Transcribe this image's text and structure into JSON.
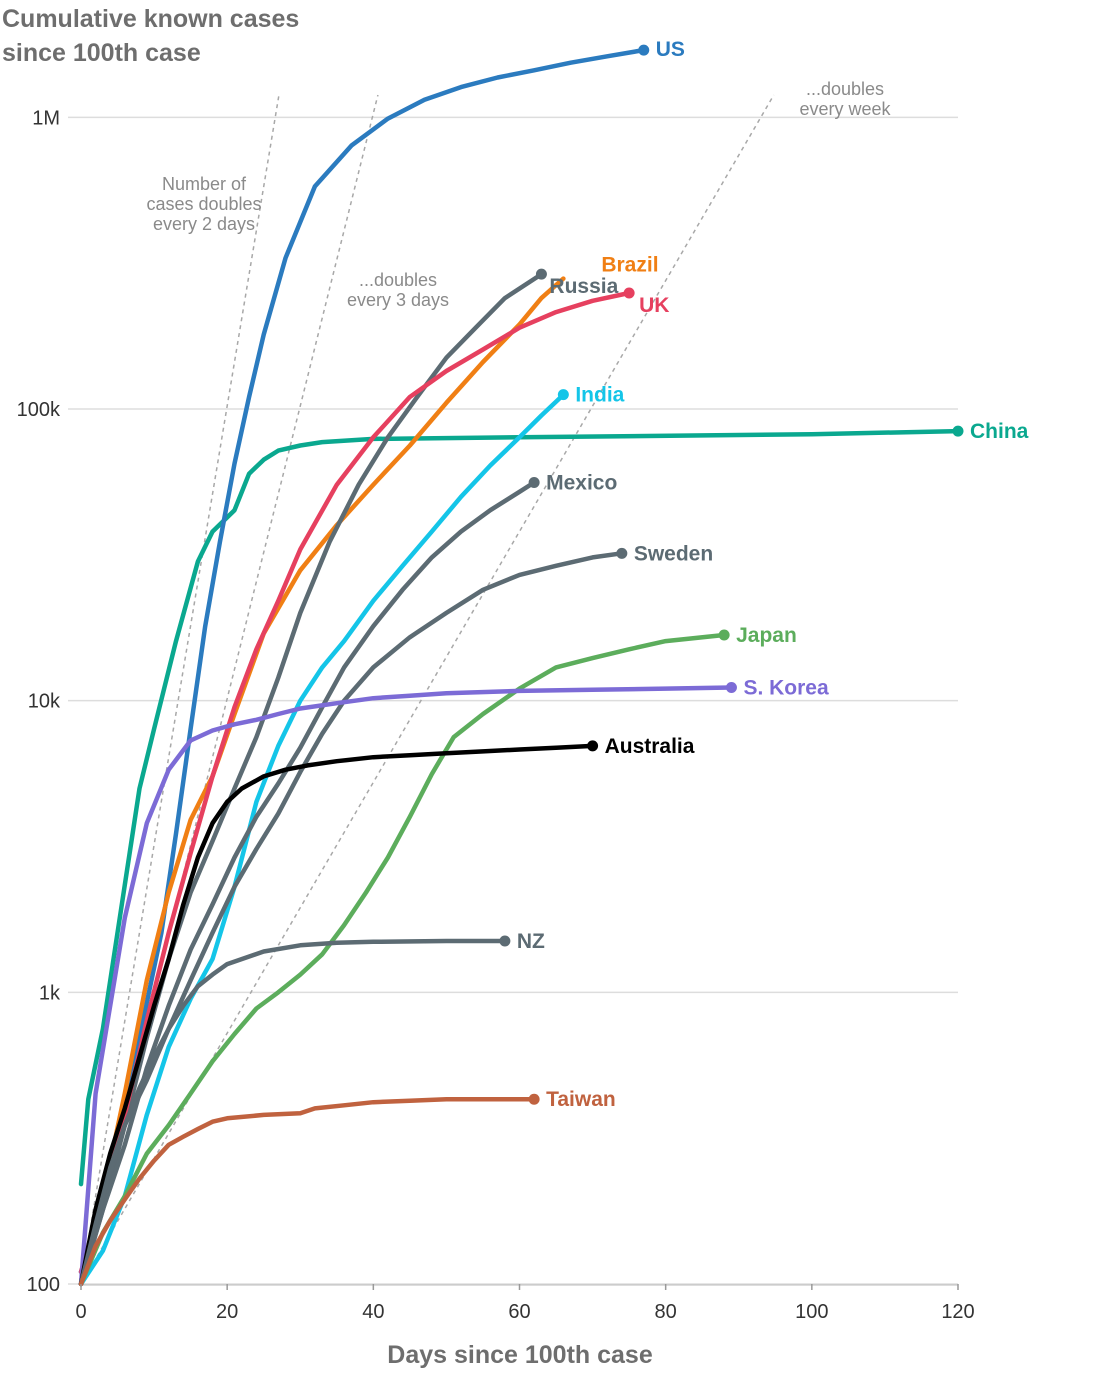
{
  "chart_data": {
    "type": "line",
    "title_lines": [
      "Cumulative known cases",
      "since 100th case"
    ],
    "xlabel": "Days since 100th case",
    "ylabel": "",
    "yscale": "log",
    "xlim": [
      0,
      120
    ],
    "ylim": [
      100,
      1500000
    ],
    "x_ticks": [
      0,
      20,
      40,
      60,
      80,
      100,
      120
    ],
    "y_ticks": [
      {
        "value": 100,
        "label": "100"
      },
      {
        "value": 1000,
        "label": "1k"
      },
      {
        "value": 10000,
        "label": "10k"
      },
      {
        "value": 100000,
        "label": "100k"
      },
      {
        "value": 1000000,
        "label": "1M"
      }
    ],
    "grid": "horizontal",
    "reference_lines": [
      {
        "doubling_days": 2,
        "label_lines": [
          "Number of",
          "cases doubles",
          "every 2 days"
        ]
      },
      {
        "doubling_days": 3,
        "label_lines": [
          "...doubles",
          "every 3 days"
        ]
      },
      {
        "doubling_days": 7,
        "label_lines": [
          "...doubles",
          "every week"
        ]
      }
    ],
    "series": [
      {
        "name": "China",
        "color": "#0aa88f",
        "x": [
          0,
          1,
          3,
          5,
          8,
          10,
          13,
          16,
          18,
          21,
          23,
          25,
          27,
          30,
          33,
          40,
          60,
          100,
          120
        ],
        "y": [
          220,
          430,
          750,
          1600,
          5000,
          8000,
          16000,
          30000,
          38000,
          45000,
          60000,
          67000,
          72000,
          75000,
          77000,
          79000,
          80000,
          82000,
          84000
        ]
      },
      {
        "name": "US",
        "color": "#2b7bbf",
        "x": [
          0,
          2,
          5,
          8,
          11,
          13,
          15,
          17,
          19,
          21,
          23,
          25,
          28,
          32,
          37,
          42,
          47,
          52,
          57,
          62,
          67,
          72,
          77
        ],
        "y": [
          110,
          150,
          280,
          700,
          1600,
          3500,
          8000,
          18000,
          35000,
          65000,
          110000,
          180000,
          330000,
          580000,
          800000,
          990000,
          1150000,
          1270000,
          1370000,
          1450000,
          1540000,
          1620000,
          1700000
        ]
      },
      {
        "name": "Brazil",
        "color": "#f07f14",
        "x": [
          0,
          3,
          6,
          9,
          12,
          15,
          18,
          21,
          25,
          30,
          35,
          40,
          45,
          50,
          55,
          60,
          63,
          66
        ],
        "y": [
          100,
          200,
          450,
          1100,
          2200,
          3900,
          5500,
          9000,
          17000,
          28000,
          40000,
          55000,
          75000,
          105000,
          145000,
          195000,
          240000,
          280000
        ]
      },
      {
        "name": "Russia",
        "color": "#5c6b73",
        "x": [
          0,
          3,
          6,
          9,
          12,
          15,
          18,
          21,
          24,
          27,
          30,
          34,
          38,
          42,
          46,
          50,
          54,
          58,
          63
        ],
        "y": [
          100,
          180,
          350,
          700,
          1300,
          2200,
          3300,
          5000,
          7500,
          12000,
          20000,
          35000,
          55000,
          80000,
          110000,
          150000,
          190000,
          240000,
          290000
        ]
      },
      {
        "name": "UK",
        "color": "#e6405f",
        "x": [
          0,
          3,
          6,
          9,
          12,
          15,
          18,
          21,
          24,
          27,
          30,
          35,
          40,
          45,
          50,
          55,
          60,
          65,
          70,
          75
        ],
        "y": [
          110,
          200,
          380,
          800,
          1600,
          3000,
          5500,
          9500,
          15000,
          22000,
          33000,
          55000,
          80000,
          110000,
          135000,
          160000,
          190000,
          215000,
          235000,
          250000
        ]
      },
      {
        "name": "India",
        "color": "#14c5e8",
        "x": [
          0,
          3,
          6,
          9,
          12,
          15,
          18,
          21,
          24,
          27,
          30,
          33,
          36,
          40,
          44,
          48,
          52,
          56,
          60,
          63,
          66
        ],
        "y": [
          100,
          130,
          200,
          380,
          650,
          950,
          1300,
          2300,
          4500,
          7000,
          10000,
          13000,
          16000,
          22000,
          29000,
          38000,
          50000,
          64000,
          80000,
          95000,
          112000
        ]
      },
      {
        "name": "Mexico",
        "color": "#5c6b73",
        "x": [
          0,
          3,
          6,
          9,
          12,
          15,
          18,
          21,
          24,
          27,
          30,
          33,
          36,
          40,
          44,
          48,
          52,
          56,
          60,
          62
        ],
        "y": [
          100,
          180,
          300,
          550,
          900,
          1400,
          2000,
          2900,
          4000,
          5200,
          6900,
          9500,
          13000,
          18000,
          24000,
          31000,
          38000,
          45000,
          52000,
          56000
        ]
      },
      {
        "name": "Sweden",
        "color": "#5c6b73",
        "x": [
          0,
          3,
          6,
          9,
          12,
          15,
          18,
          21,
          24,
          27,
          30,
          33,
          36,
          40,
          45,
          50,
          55,
          60,
          65,
          70,
          74
        ],
        "y": [
          100,
          200,
          350,
          500,
          750,
          1100,
          1600,
          2300,
          3100,
          4100,
          5700,
          7700,
          10000,
          13000,
          16500,
          20000,
          24000,
          27000,
          29000,
          31000,
          32000
        ]
      },
      {
        "name": "Japan",
        "color": "#5cad5c",
        "x": [
          0,
          3,
          6,
          9,
          12,
          15,
          18,
          21,
          24,
          27,
          30,
          33,
          36,
          39,
          42,
          45,
          48,
          51,
          55,
          60,
          65,
          70,
          75,
          80,
          88
        ],
        "y": [
          100,
          150,
          200,
          280,
          350,
          450,
          580,
          720,
          880,
          1000,
          1150,
          1350,
          1700,
          2200,
          2900,
          4000,
          5600,
          7500,
          9000,
          11000,
          13000,
          14000,
          15000,
          16000,
          16800
        ]
      },
      {
        "name": "S. Korea",
        "color": "#7c6bd6",
        "x": [
          0,
          2,
          4,
          6,
          9,
          12,
          15,
          18,
          21,
          24,
          27,
          30,
          35,
          40,
          45,
          50,
          60,
          70,
          80,
          89
        ],
        "y": [
          100,
          450,
          900,
          1800,
          3800,
          5800,
          7300,
          7900,
          8300,
          8600,
          9000,
          9400,
          9800,
          10200,
          10400,
          10600,
          10800,
          10900,
          11000,
          11100
        ]
      },
      {
        "name": "Australia",
        "color": "#000000",
        "x": [
          0,
          2,
          4,
          6,
          8,
          10,
          12,
          14,
          16,
          18,
          20,
          22,
          25,
          28,
          31,
          35,
          40,
          45,
          50,
          55,
          60,
          65,
          70
        ],
        "y": [
          100,
          180,
          280,
          400,
          600,
          900,
          1300,
          2000,
          2900,
          3800,
          4500,
          5000,
          5500,
          5800,
          6000,
          6200,
          6400,
          6500,
          6600,
          6700,
          6800,
          6900,
          7000
        ]
      },
      {
        "name": "NZ",
        "color": "#5c6b73",
        "x": [
          0,
          2,
          4,
          6,
          8,
          10,
          12,
          14,
          16,
          18,
          20,
          25,
          30,
          35,
          40,
          50,
          58
        ],
        "y": [
          100,
          160,
          250,
          350,
          470,
          600,
          750,
          900,
          1050,
          1150,
          1250,
          1380,
          1450,
          1480,
          1490,
          1500,
          1500
        ]
      },
      {
        "name": "Taiwan",
        "color": "#c0623f",
        "x": [
          0,
          2,
          4,
          6,
          8,
          10,
          12,
          14,
          16,
          18,
          20,
          25,
          30,
          32,
          36,
          40,
          45,
          50,
          55,
          60,
          62
        ],
        "y": [
          100,
          135,
          165,
          195,
          230,
          265,
          300,
          320,
          340,
          360,
          370,
          380,
          385,
          400,
          410,
          420,
          425,
          430,
          430,
          430,
          430
        ]
      }
    ]
  }
}
